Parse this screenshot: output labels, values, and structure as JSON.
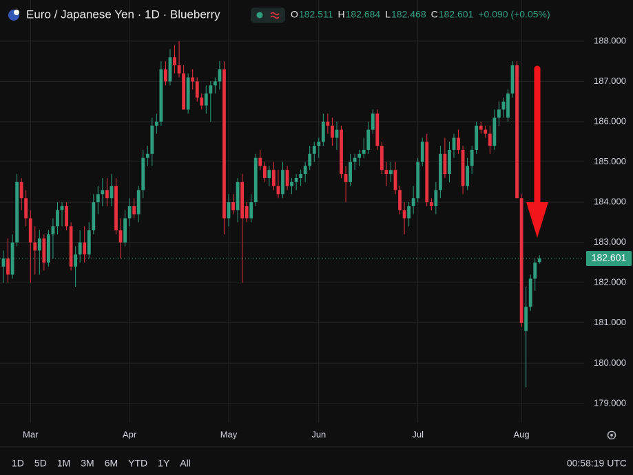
{
  "header": {
    "title": "Euro / Japanese Yen · 1D · Blueberry",
    "ohlc": [
      {
        "label": "O",
        "value": "182.511"
      },
      {
        "label": "H",
        "value": "182.684"
      },
      {
        "label": "L",
        "value": "182.468"
      },
      {
        "label": "C",
        "value": "182.601"
      }
    ],
    "change": "+0.090 (+0.05%)"
  },
  "chart_data": {
    "type": "candlestick",
    "categories": [
      null,
      null,
      null,
      null,
      null,
      null,
      "Mar",
      null,
      null,
      null,
      null,
      null,
      null,
      null,
      null,
      null,
      null,
      null,
      null,
      null,
      null,
      null,
      null,
      null,
      null,
      null,
      null,
      null,
      "Apr",
      null,
      null,
      null,
      null,
      null,
      null,
      null,
      null,
      null,
      null,
      null,
      null,
      null,
      null,
      null,
      null,
      null,
      null,
      null,
      null,
      null,
      "May",
      null,
      null,
      null,
      null,
      null,
      null,
      null,
      null,
      null,
      null,
      null,
      null,
      null,
      null,
      null,
      null,
      null,
      null,
      null,
      "Jun",
      null,
      null,
      null,
      null,
      null,
      null,
      null,
      null,
      null,
      null,
      null,
      null,
      null,
      null,
      null,
      null,
      null,
      null,
      null,
      null,
      null,
      "Jul",
      null,
      null,
      null,
      null,
      null,
      null,
      null,
      null,
      null,
      null,
      null,
      null,
      null,
      null,
      null,
      null,
      null,
      null,
      null,
      null,
      null,
      null,
      "Aug",
      null,
      null,
      null,
      null
    ],
    "open": [
      182.4,
      182.6,
      182.2,
      183.0,
      184.5,
      184.1,
      183.6,
      183.0,
      182.8,
      183.1,
      182.5,
      183.2,
      183.4,
      183.8,
      183.9,
      183.4,
      182.4,
      182.7,
      183.0,
      182.7,
      183.3,
      184.0,
      184.2,
      184.3,
      184.1,
      184.4,
      183.3,
      183.0,
      183.6,
      183.9,
      183.7,
      184.3,
      185.1,
      185.2,
      185.9,
      186.0,
      187.3,
      187.0,
      187.6,
      187.4,
      187.2,
      186.3,
      187.1,
      187.0,
      186.6,
      186.4,
      186.7,
      186.9,
      187.0,
      187.3,
      183.6,
      184.0,
      183.8,
      184.5,
      183.9,
      183.6,
      184.0,
      185.1,
      184.9,
      184.6,
      184.8,
      184.4,
      184.2,
      184.8,
      184.4,
      184.5,
      184.6,
      184.7,
      184.9,
      185.2,
      185.4,
      185.5,
      186.0,
      185.9,
      185.6,
      185.8,
      184.7,
      184.5,
      185.0,
      185.1,
      185.2,
      185.3,
      185.8,
      186.2,
      185.4,
      184.8,
      184.7,
      184.8,
      184.3,
      183.8,
      183.6,
      183.9,
      184.1,
      185.0,
      185.5,
      184.0,
      183.9,
      184.3,
      185.2,
      184.7,
      185.3,
      185.6,
      185.3,
      184.4,
      184.9,
      185.3,
      185.9,
      185.8,
      185.7,
      185.4,
      186.1,
      186.3,
      186.1,
      186.7,
      187.4,
      184.1,
      180.8,
      181.4,
      182.1,
      182.511
    ],
    "high": [
      182.8,
      183.1,
      183.2,
      184.7,
      184.6,
      184.3,
      183.8,
      183.4,
      183.3,
      183.2,
      183.3,
      183.6,
      184.0,
      184.0,
      184.0,
      183.5,
      182.9,
      183.3,
      183.4,
      183.5,
      184.2,
      184.4,
      184.6,
      184.6,
      184.7,
      184.6,
      183.6,
      183.8,
      184.1,
      184.1,
      184.4,
      185.3,
      185.4,
      186.1,
      186.2,
      187.5,
      187.5,
      187.8,
      187.9,
      188.0,
      187.4,
      187.2,
      187.3,
      187.1,
      186.7,
      186.9,
      187.0,
      187.1,
      187.5,
      187.5,
      184.2,
      184.2,
      184.6,
      184.7,
      184.0,
      184.2,
      185.2,
      185.3,
      185.0,
      184.9,
      185.0,
      184.8,
      185.0,
      184.9,
      184.6,
      184.7,
      184.8,
      185.0,
      185.4,
      185.5,
      185.6,
      186.2,
      186.2,
      186.1,
      186.0,
      185.9,
      184.9,
      185.2,
      185.2,
      185.3,
      185.6,
      186.0,
      186.3,
      186.3,
      185.5,
      185.0,
      185.0,
      185.0,
      184.4,
      184.0,
      184.0,
      184.4,
      185.1,
      185.6,
      185.7,
      184.1,
      184.5,
      185.4,
      185.6,
      185.5,
      185.7,
      185.8,
      185.4,
      185.1,
      185.4,
      186.0,
      186.0,
      185.9,
      185.9,
      186.3,
      186.5,
      186.6,
      186.8,
      187.5,
      187.5,
      184.2,
      181.9,
      182.2,
      182.6,
      182.684
    ],
    "low": [
      182.0,
      182.0,
      182.1,
      182.9,
      183.8,
      183.4,
      182.0,
      182.2,
      182.2,
      182.3,
      182.4,
      182.6,
      183.2,
      183.4,
      183.3,
      182.3,
      181.9,
      182.5,
      182.5,
      182.6,
      183.2,
      183.7,
      183.9,
      183.9,
      183.9,
      183.2,
      182.6,
      182.9,
      183.4,
      183.6,
      183.5,
      184.1,
      184.9,
      184.9,
      185.7,
      185.9,
      186.9,
      186.9,
      187.2,
      187.1,
      186.3,
      186.2,
      186.8,
      186.5,
      186.3,
      186.2,
      186.0,
      186.7,
      186.8,
      183.2,
      183.4,
      183.7,
      183.5,
      182.0,
      183.5,
      183.5,
      183.9,
      184.8,
      184.5,
      184.4,
      184.3,
      184.1,
      184.1,
      184.3,
      184.2,
      184.3,
      184.4,
      184.5,
      184.8,
      185.0,
      185.1,
      185.4,
      185.7,
      185.4,
      185.3,
      184.6,
      184.0,
      184.4,
      184.8,
      184.9,
      185.1,
      185.2,
      185.7,
      185.3,
      184.7,
      184.4,
      184.5,
      184.2,
      183.7,
      183.2,
      183.4,
      183.7,
      184.0,
      184.9,
      183.9,
      183.8,
      183.7,
      184.1,
      184.6,
      184.5,
      185.1,
      185.2,
      184.2,
      184.3,
      184.7,
      185.2,
      185.7,
      185.6,
      185.2,
      185.3,
      185.9,
      186.1,
      186.0,
      186.6,
      184.1,
      180.9,
      179.4,
      181.3,
      181.8,
      182.468
    ],
    "close": [
      182.6,
      182.2,
      183.0,
      184.5,
      184.1,
      183.6,
      183.0,
      182.8,
      183.1,
      182.5,
      183.2,
      183.4,
      183.8,
      183.9,
      183.4,
      182.4,
      182.7,
      183.0,
      182.7,
      183.3,
      184.0,
      184.2,
      184.3,
      184.1,
      184.4,
      183.3,
      183.0,
      183.6,
      183.9,
      183.7,
      184.3,
      185.1,
      185.2,
      185.9,
      186.0,
      187.3,
      187.0,
      187.6,
      187.4,
      187.2,
      186.3,
      187.1,
      187.0,
      186.6,
      186.4,
      186.7,
      186.9,
      187.0,
      187.3,
      183.6,
      184.0,
      183.8,
      184.5,
      183.6,
      183.6,
      184.0,
      185.1,
      184.9,
      184.6,
      184.8,
      184.4,
      184.2,
      184.8,
      184.4,
      184.5,
      184.6,
      184.7,
      184.9,
      185.2,
      185.4,
      185.5,
      186.0,
      185.9,
      185.6,
      185.8,
      184.7,
      184.5,
      185.0,
      185.1,
      185.2,
      185.3,
      185.8,
      186.2,
      185.4,
      184.8,
      184.7,
      184.8,
      184.3,
      183.8,
      183.6,
      183.9,
      184.1,
      185.0,
      185.5,
      184.0,
      183.9,
      184.3,
      185.2,
      184.7,
      185.3,
      185.6,
      185.3,
      184.4,
      184.9,
      185.3,
      185.9,
      185.8,
      185.7,
      185.4,
      186.1,
      186.3,
      186.5,
      186.7,
      187.4,
      184.1,
      181.0,
      181.4,
      182.1,
      182.5,
      182.601
    ],
    "up_color": "#2f9e7f",
    "down_color": "#e8323f",
    "last_price": 182.601,
    "ylim": [
      178.52,
      188.51
    ],
    "yticks": [
      {
        "value": 179,
        "label": "179.000"
      },
      {
        "value": 180,
        "label": "180.000"
      },
      {
        "value": 181,
        "label": "181.000"
      },
      {
        "value": 182,
        "label": "182.000"
      },
      {
        "value": 183,
        "label": "183.000"
      },
      {
        "value": 184,
        "label": "184.000"
      },
      {
        "value": 185,
        "label": "185.000"
      },
      {
        "value": 186,
        "label": "186.000"
      },
      {
        "value": 187,
        "label": "187.000"
      },
      {
        "value": 188,
        "label": "188.000"
      }
    ],
    "grid": true
  },
  "footer": {
    "ranges": [
      "1D",
      "5D",
      "1M",
      "3M",
      "6M",
      "YTD",
      "1Y",
      "All"
    ],
    "clock": "00:58:19 UTC"
  }
}
